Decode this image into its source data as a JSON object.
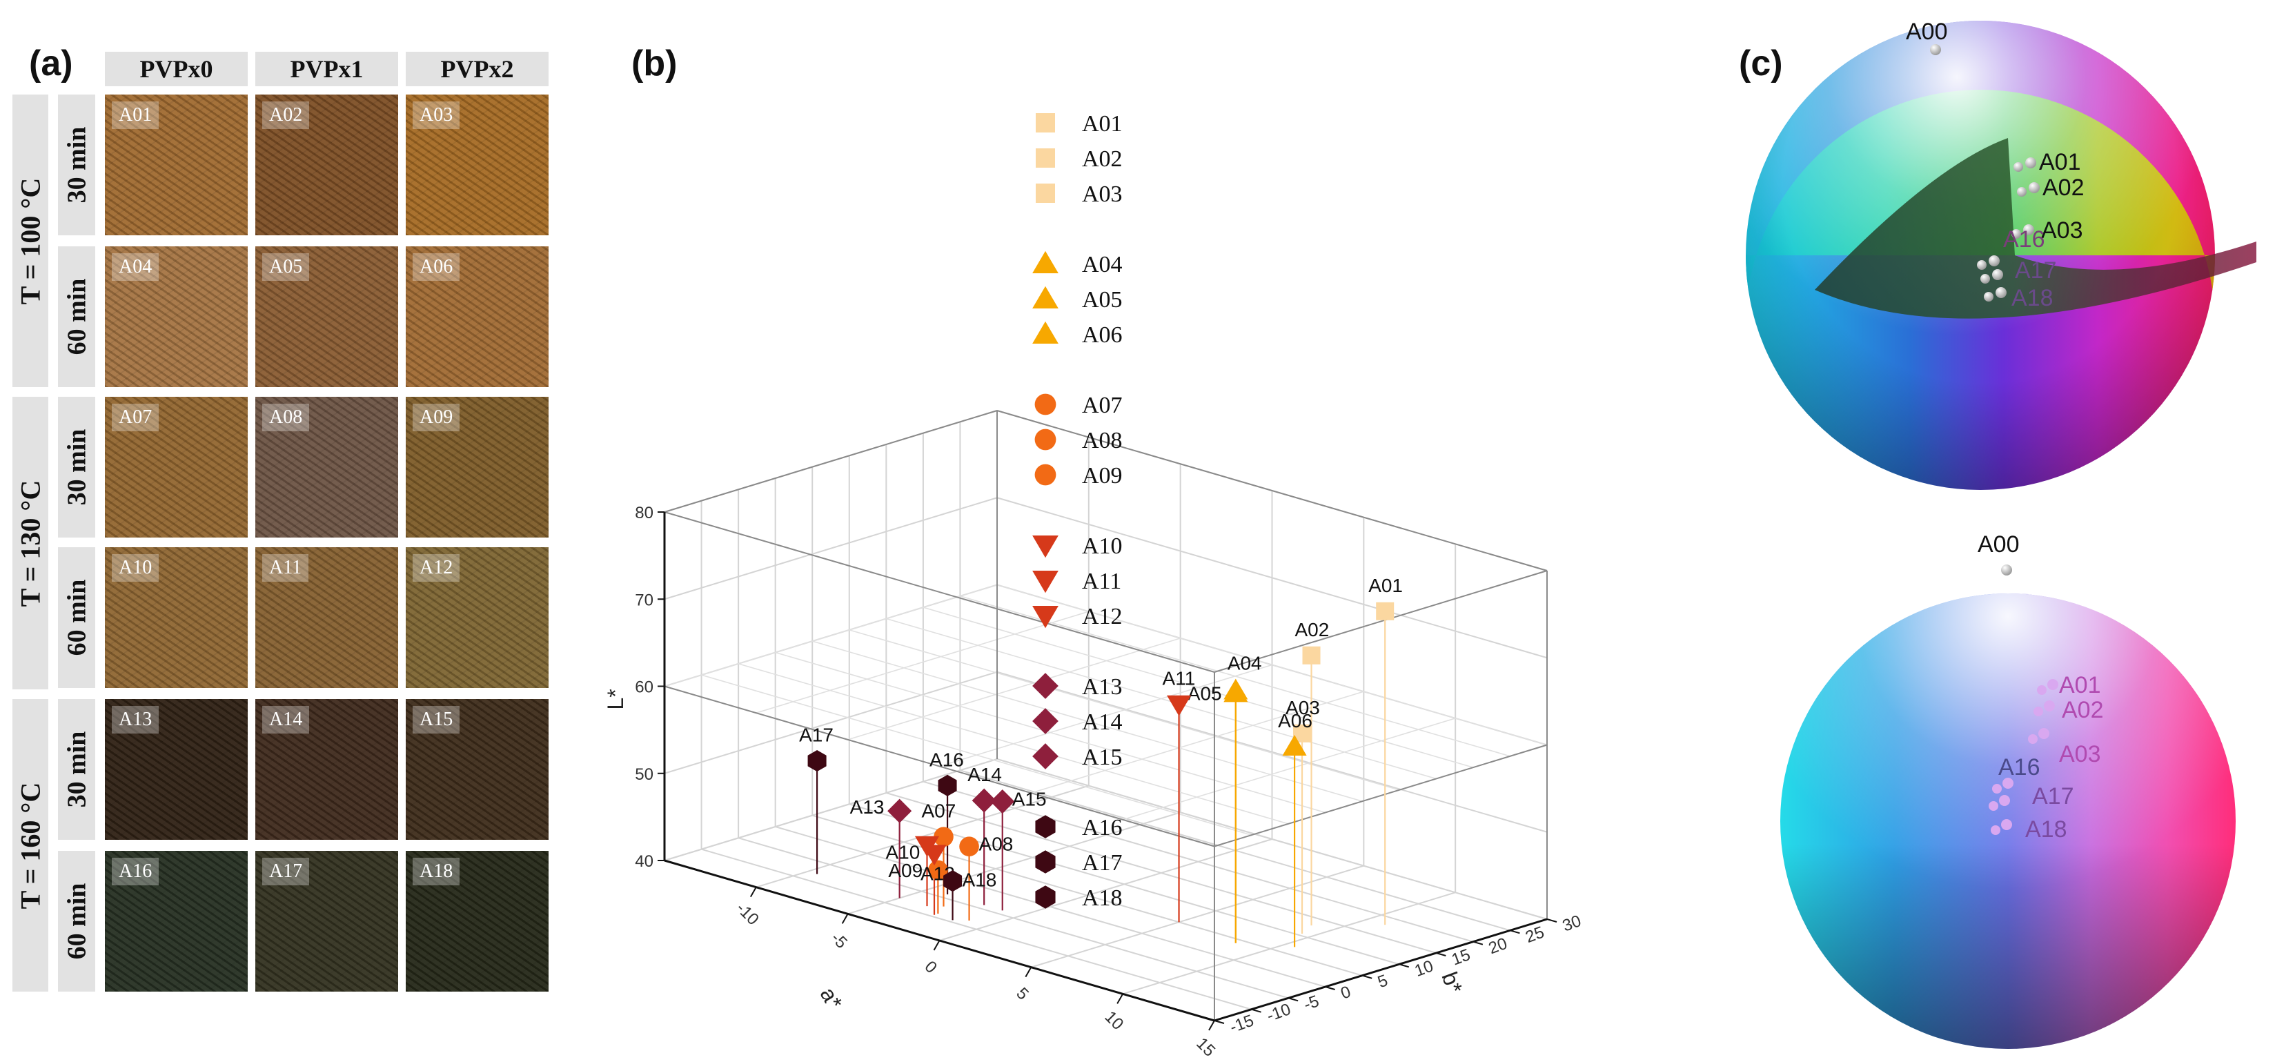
{
  "panels": {
    "a": "(a)",
    "b": "(b)",
    "c": "(c)"
  },
  "grid": {
    "columns": [
      "PVPx0",
      "PVPx1",
      "PVPx2"
    ],
    "temperatures": [
      "T = 100 °C",
      "T = 130 °C",
      "T = 160 °C"
    ],
    "times": [
      "30 min",
      "60 min",
      "30 min",
      "60 min",
      "30 min",
      "60 min"
    ],
    "samples": [
      {
        "id": "A01",
        "color": "#a06a30"
      },
      {
        "id": "A02",
        "color": "#7e4f25"
      },
      {
        "id": "A03",
        "color": "#a66b24"
      },
      {
        "id": "A04",
        "color": "#a57442"
      },
      {
        "id": "A05",
        "color": "#8a5c32"
      },
      {
        "id": "A06",
        "color": "#a16b33"
      },
      {
        "id": "A07",
        "color": "#93662f"
      },
      {
        "id": "A08",
        "color": "#6d5444"
      },
      {
        "id": "A09",
        "color": "#7e5c28"
      },
      {
        "id": "A10",
        "color": "#8f6632"
      },
      {
        "id": "A11",
        "color": "#866030"
      },
      {
        "id": "A12",
        "color": "#7e6532"
      },
      {
        "id": "A13",
        "color": "#2f2114"
      },
      {
        "id": "A14",
        "color": "#3f2a1c"
      },
      {
        "id": "A15",
        "color": "#3e2c1a"
      },
      {
        "id": "A16",
        "color": "#263022"
      },
      {
        "id": "A17",
        "color": "#333220"
      },
      {
        "id": "A18",
        "color": "#252818"
      }
    ]
  },
  "chart_data": {
    "type": "scatter",
    "dims": 3,
    "xlabel": "a*",
    "ylabel": "b*",
    "zlabel": "L*",
    "xlim": [
      -15,
      15
    ],
    "ylim": [
      -15,
      30
    ],
    "zlim": [
      40,
      80
    ],
    "xticks": [
      "-10",
      "-5",
      "0",
      "5",
      "10",
      "15"
    ],
    "yticks": [
      "-15",
      "-10",
      "-5",
      "0",
      "5",
      "10",
      "15",
      "20",
      "25",
      "30"
    ],
    "zticks": [
      "40",
      "50",
      "60",
      "70",
      "80"
    ],
    "series": [
      {
        "name": "A01-A03",
        "marker": "square",
        "color": "#fbd7a0",
        "points": [
          {
            "label": "A01",
            "a": 11.0,
            "b": 18.0,
            "L": 76.0
          },
          {
            "label": "A02",
            "a": 9.0,
            "b": 13.0,
            "L": 71.0
          },
          {
            "label": "A03",
            "a": 9.5,
            "b": 10.5,
            "L": 63.0
          }
        ]
      },
      {
        "name": "A04-A06",
        "marker": "triangle-up",
        "color": "#f7a800",
        "points": [
          {
            "label": "A04",
            "a": 8.5,
            "b": 4.0,
            "L": 69.0
          },
          {
            "label": "A05",
            "a": 8.5,
            "b": 4.0,
            "L": 68.7
          },
          {
            "label": "A06",
            "a": 10.5,
            "b": 7.0,
            "L": 63.0
          }
        ]
      },
      {
        "name": "A07-A09",
        "marker": "circle",
        "color": "#f26a15",
        "points": [
          {
            "label": "A07",
            "a": -3.0,
            "b": -7.0,
            "L": 48.0
          },
          {
            "label": "A08",
            "a": -1.0,
            "b": -8.5,
            "L": 48.5
          },
          {
            "label": "A09",
            "a": -2.5,
            "b": -9.0,
            "L": 45.0
          }
        ]
      },
      {
        "name": "A10-A12",
        "marker": "triangle-down",
        "color": "#d6391a",
        "points": [
          {
            "label": "A10",
            "a": -3.5,
            "b": -8.0,
            "L": 47.0
          },
          {
            "label": "A11",
            "a": 5.0,
            "b": 5.0,
            "L": 65.0
          },
          {
            "label": "A12",
            "a": -2.5,
            "b": -9.5,
            "L": 47.0
          }
        ]
      },
      {
        "name": "A13-A15",
        "marker": "diamond",
        "color": "#8e1f3c",
        "points": [
          {
            "label": "A13",
            "a": -5.0,
            "b": -8.0,
            "L": 50.0
          },
          {
            "label": "A14",
            "a": -2.0,
            "b": -4.0,
            "L": 52.0
          },
          {
            "label": "A15",
            "a": -1.0,
            "b": -4.0,
            "L": 52.5
          }
        ]
      },
      {
        "name": "A16-A18",
        "marker": "hexagon",
        "color": "#3e0813",
        "points": [
          {
            "label": "A16",
            "a": -4.0,
            "b": -4.0,
            "L": 52.5
          },
          {
            "label": "A17",
            "a": -9.5,
            "b": -8.0,
            "L": 53.0
          },
          {
            "label": "A18",
            "a": -1.5,
            "b": -9.5,
            "L": 44.5
          }
        ]
      }
    ]
  },
  "spheres": {
    "top_labels": [
      "A00",
      "A01",
      "A02",
      "A03",
      "A16",
      "A17",
      "A18"
    ],
    "bottom_labels": [
      "A00",
      "A01",
      "A02",
      "A03",
      "A16",
      "A17",
      "A18"
    ]
  }
}
